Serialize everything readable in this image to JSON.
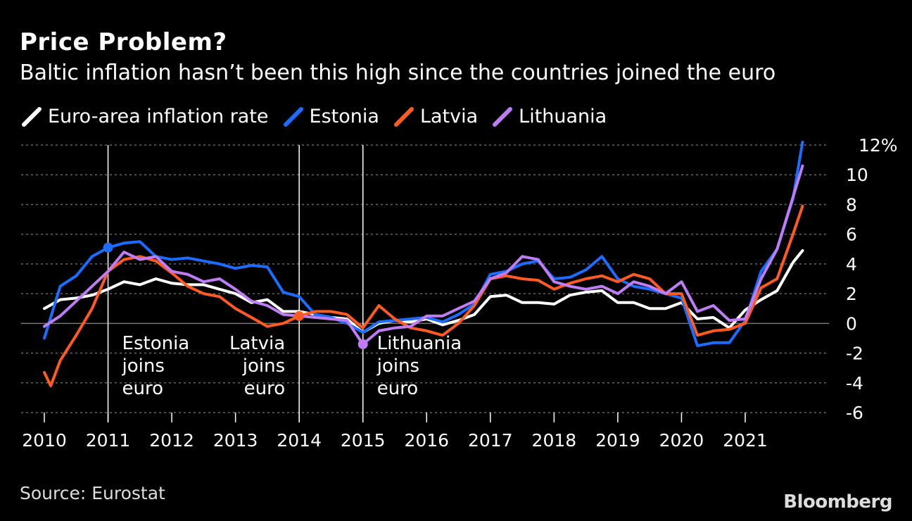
{
  "header": {
    "title": "Price Problem?",
    "subtitle": "Baltic inflation hasn’t been this high since the countries joined the euro"
  },
  "footer": {
    "source": "Source: Eurostat",
    "brand": "Bloomberg"
  },
  "chart_data": {
    "type": "line",
    "title": "Price Problem?",
    "subtitle": "Baltic inflation hasn’t been this high since the countries joined the euro",
    "xlabel": "",
    "ylabel": "",
    "xlim": [
      2009.6,
      2022.2
    ],
    "ylim": [
      -6,
      12
    ],
    "y_unit_suffix": "%",
    "x_ticks": [
      2010,
      2011,
      2012,
      2013,
      2014,
      2015,
      2016,
      2017,
      2018,
      2019,
      2020,
      2021
    ],
    "y_ticks": [
      -6,
      -4,
      -2,
      0,
      2,
      4,
      6,
      8,
      10,
      12
    ],
    "y_tick_labels": [
      "-6",
      "-4",
      "-2",
      "0",
      "2",
      "4",
      "6",
      "8",
      "10",
      "12%"
    ],
    "grid": "horizontal dotted",
    "legend_position": "top-left",
    "series": [
      {
        "name": "Euro-area inflation rate",
        "color": "#ffffff",
        "points": [
          [
            2010.0,
            1.0
          ],
          [
            2010.25,
            1.6
          ],
          [
            2010.5,
            1.7
          ],
          [
            2010.75,
            1.9
          ],
          [
            2011.0,
            2.3
          ],
          [
            2011.25,
            2.8
          ],
          [
            2011.5,
            2.6
          ],
          [
            2011.75,
            3.0
          ],
          [
            2012.0,
            2.7
          ],
          [
            2012.25,
            2.6
          ],
          [
            2012.5,
            2.6
          ],
          [
            2012.75,
            2.3
          ],
          [
            2013.0,
            2.0
          ],
          [
            2013.25,
            1.4
          ],
          [
            2013.5,
            1.6
          ],
          [
            2013.75,
            0.8
          ],
          [
            2014.0,
            0.8
          ],
          [
            2014.25,
            0.6
          ],
          [
            2014.5,
            0.4
          ],
          [
            2014.75,
            0.3
          ],
          [
            2015.0,
            -0.6
          ],
          [
            2015.25,
            0.0
          ],
          [
            2015.5,
            0.2
          ],
          [
            2015.75,
            0.1
          ],
          [
            2016.0,
            0.3
          ],
          [
            2016.25,
            -0.1
          ],
          [
            2016.5,
            0.2
          ],
          [
            2016.75,
            0.6
          ],
          [
            2017.0,
            1.8
          ],
          [
            2017.25,
            1.9
          ],
          [
            2017.5,
            1.4
          ],
          [
            2017.75,
            1.4
          ],
          [
            2018.0,
            1.3
          ],
          [
            2018.25,
            1.9
          ],
          [
            2018.5,
            2.1
          ],
          [
            2018.75,
            2.2
          ],
          [
            2019.0,
            1.4
          ],
          [
            2019.25,
            1.4
          ],
          [
            2019.5,
            1.0
          ],
          [
            2019.75,
            1.0
          ],
          [
            2020.0,
            1.4
          ],
          [
            2020.25,
            0.3
          ],
          [
            2020.5,
            0.4
          ],
          [
            2020.75,
            -0.3
          ],
          [
            2021.0,
            0.9
          ],
          [
            2021.25,
            1.6
          ],
          [
            2021.5,
            2.2
          ],
          [
            2021.75,
            4.1
          ],
          [
            2021.9,
            4.9
          ]
        ]
      },
      {
        "name": "Estonia",
        "color": "#1a6dff",
        "points": [
          [
            2010.0,
            -1.0
          ],
          [
            2010.25,
            2.5
          ],
          [
            2010.5,
            3.2
          ],
          [
            2010.75,
            4.5
          ],
          [
            2011.0,
            5.1
          ],
          [
            2011.25,
            5.4
          ],
          [
            2011.5,
            5.5
          ],
          [
            2011.75,
            4.5
          ],
          [
            2012.0,
            4.3
          ],
          [
            2012.25,
            4.4
          ],
          [
            2012.5,
            4.2
          ],
          [
            2012.75,
            4.0
          ],
          [
            2013.0,
            3.7
          ],
          [
            2013.25,
            3.9
          ],
          [
            2013.5,
            3.8
          ],
          [
            2013.75,
            2.1
          ],
          [
            2014.0,
            1.8
          ],
          [
            2014.25,
            0.6
          ],
          [
            2014.5,
            0.4
          ],
          [
            2014.75,
            0.0
          ],
          [
            2015.0,
            -0.6
          ],
          [
            2015.25,
            0.1
          ],
          [
            2015.5,
            0.2
          ],
          [
            2015.75,
            0.3
          ],
          [
            2016.0,
            0.4
          ],
          [
            2016.25,
            0.1
          ],
          [
            2016.5,
            0.6
          ],
          [
            2016.75,
            1.3
          ],
          [
            2017.0,
            3.3
          ],
          [
            2017.25,
            3.5
          ],
          [
            2017.5,
            4.0
          ],
          [
            2017.75,
            4.2
          ],
          [
            2018.0,
            3.0
          ],
          [
            2018.25,
            3.1
          ],
          [
            2018.5,
            3.6
          ],
          [
            2018.75,
            4.5
          ],
          [
            2019.0,
            3.0
          ],
          [
            2019.25,
            2.5
          ],
          [
            2019.5,
            2.3
          ],
          [
            2019.75,
            2.0
          ],
          [
            2020.0,
            1.7
          ],
          [
            2020.25,
            -1.5
          ],
          [
            2020.5,
            -1.3
          ],
          [
            2020.75,
            -1.3
          ],
          [
            2021.0,
            0.2
          ],
          [
            2021.25,
            3.5
          ],
          [
            2021.5,
            5.0
          ],
          [
            2021.75,
            8.4
          ],
          [
            2021.9,
            12.2
          ]
        ]
      },
      {
        "name": "Latvia",
        "color": "#ff5a1f",
        "points": [
          [
            2010.0,
            -3.3
          ],
          [
            2010.1,
            -4.2
          ],
          [
            2010.25,
            -2.5
          ],
          [
            2010.5,
            -0.8
          ],
          [
            2010.75,
            1.0
          ],
          [
            2011.0,
            3.5
          ],
          [
            2011.25,
            4.3
          ],
          [
            2011.5,
            4.5
          ],
          [
            2011.75,
            4.2
          ],
          [
            2012.0,
            3.4
          ],
          [
            2012.25,
            2.5
          ],
          [
            2012.5,
            2.0
          ],
          [
            2012.75,
            1.8
          ],
          [
            2013.0,
            1.0
          ],
          [
            2013.25,
            0.4
          ],
          [
            2013.5,
            -0.2
          ],
          [
            2013.75,
            0.0
          ],
          [
            2014.0,
            0.5
          ],
          [
            2014.25,
            0.8
          ],
          [
            2014.5,
            0.8
          ],
          [
            2014.75,
            0.6
          ],
          [
            2015.0,
            -0.3
          ],
          [
            2015.25,
            1.2
          ],
          [
            2015.5,
            0.3
          ],
          [
            2015.75,
            -0.3
          ],
          [
            2016.0,
            -0.5
          ],
          [
            2016.25,
            -0.8
          ],
          [
            2016.5,
            0.0
          ],
          [
            2016.75,
            1.2
          ],
          [
            2017.0,
            3.0
          ],
          [
            2017.25,
            3.2
          ],
          [
            2017.5,
            3.0
          ],
          [
            2017.75,
            2.9
          ],
          [
            2018.0,
            2.3
          ],
          [
            2018.25,
            2.7
          ],
          [
            2018.5,
            3.0
          ],
          [
            2018.75,
            3.2
          ],
          [
            2019.0,
            2.8
          ],
          [
            2019.25,
            3.3
          ],
          [
            2019.5,
            3.0
          ],
          [
            2019.75,
            2.0
          ],
          [
            2020.0,
            2.0
          ],
          [
            2020.25,
            -0.8
          ],
          [
            2020.5,
            -0.5
          ],
          [
            2020.75,
            -0.4
          ],
          [
            2021.0,
            0.0
          ],
          [
            2021.25,
            2.4
          ],
          [
            2021.5,
            3.0
          ],
          [
            2021.75,
            6.0
          ],
          [
            2021.9,
            7.9
          ]
        ]
      },
      {
        "name": "Lithuania",
        "color": "#c07cf5",
        "points": [
          [
            2010.0,
            -0.2
          ],
          [
            2010.25,
            0.5
          ],
          [
            2010.5,
            1.5
          ],
          [
            2010.75,
            2.5
          ],
          [
            2011.0,
            3.5
          ],
          [
            2011.25,
            4.8
          ],
          [
            2011.5,
            4.3
          ],
          [
            2011.75,
            4.5
          ],
          [
            2012.0,
            3.5
          ],
          [
            2012.25,
            3.3
          ],
          [
            2012.5,
            2.8
          ],
          [
            2012.75,
            3.0
          ],
          [
            2013.0,
            2.3
          ],
          [
            2013.25,
            1.5
          ],
          [
            2013.5,
            1.2
          ],
          [
            2013.75,
            0.6
          ],
          [
            2014.0,
            0.5
          ],
          [
            2014.25,
            0.4
          ],
          [
            2014.5,
            0.3
          ],
          [
            2014.75,
            0.2
          ],
          [
            2015.0,
            -1.4
          ],
          [
            2015.25,
            -0.5
          ],
          [
            2015.5,
            -0.3
          ],
          [
            2015.75,
            -0.2
          ],
          [
            2016.0,
            0.5
          ],
          [
            2016.25,
            0.5
          ],
          [
            2016.5,
            1.0
          ],
          [
            2016.75,
            1.5
          ],
          [
            2017.0,
            3.0
          ],
          [
            2017.25,
            3.4
          ],
          [
            2017.5,
            4.5
          ],
          [
            2017.75,
            4.3
          ],
          [
            2018.0,
            2.8
          ],
          [
            2018.25,
            2.5
          ],
          [
            2018.5,
            2.3
          ],
          [
            2018.75,
            2.5
          ],
          [
            2019.0,
            2.0
          ],
          [
            2019.25,
            2.8
          ],
          [
            2019.5,
            2.5
          ],
          [
            2019.75,
            2.0
          ],
          [
            2020.0,
            2.8
          ],
          [
            2020.25,
            0.8
          ],
          [
            2020.5,
            1.2
          ],
          [
            2020.75,
            0.2
          ],
          [
            2021.0,
            0.3
          ],
          [
            2021.25,
            3.0
          ],
          [
            2021.5,
            5.0
          ],
          [
            2021.75,
            8.5
          ],
          [
            2021.9,
            10.6
          ]
        ]
      }
    ],
    "markers": [
      {
        "series": "Estonia",
        "x": 2011.0,
        "y": 5.1
      },
      {
        "series": "Latvia",
        "x": 2014.0,
        "y": 0.5
      },
      {
        "series": "Lithuania",
        "x": 2015.0,
        "y": -1.4
      }
    ],
    "annotations": [
      {
        "x": 2011.0,
        "lines": [
          "Estonia",
          "joins",
          "euro"
        ],
        "align": "left"
      },
      {
        "x": 2014.0,
        "lines": [
          "Latvia",
          "joins",
          "euro"
        ],
        "align": "right"
      },
      {
        "x": 2015.0,
        "lines": [
          "Lithuania",
          "joins",
          "euro"
        ],
        "align": "left"
      }
    ]
  }
}
